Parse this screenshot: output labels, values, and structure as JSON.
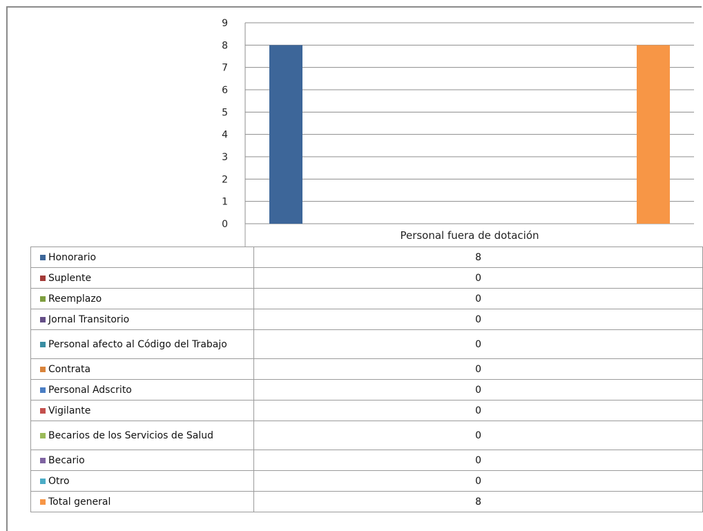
{
  "chart_data": {
    "type": "bar",
    "categories": [
      "Personal fuera de dotación"
    ],
    "series": [
      {
        "name": "Honorario",
        "values": [
          8
        ],
        "color": "#3d6699"
      },
      {
        "name": "Suplente",
        "values": [
          0
        ],
        "color": "#a33b38"
      },
      {
        "name": "Reemplazo",
        "values": [
          0
        ],
        "color": "#7e9e3f"
      },
      {
        "name": "Jornal Transitorio",
        "values": [
          0
        ],
        "color": "#654f87"
      },
      {
        "name": "Personal afecto al Código del Trabajo",
        "values": [
          0
        ],
        "color": "#3a8ea3"
      },
      {
        "name": "Contrata",
        "values": [
          0
        ],
        "color": "#d9843b"
      },
      {
        "name": "Personal Adscrito",
        "values": [
          0
        ],
        "color": "#4a7ec4"
      },
      {
        "name": "Vigilante",
        "values": [
          0
        ],
        "color": "#c4504d"
      },
      {
        "name": "Becarios de los Servicios de Salud",
        "values": [
          0
        ],
        "color": "#9bbb59"
      },
      {
        "name": "Becario",
        "values": [
          0
        ],
        "color": "#8064a2"
      },
      {
        "name": "Otro",
        "values": [
          0
        ],
        "color": "#4bacc6"
      },
      {
        "name": "Total general",
        "values": [
          8
        ],
        "color": "#f79646"
      }
    ],
    "yticks": [
      "0",
      "1",
      "2",
      "3",
      "4",
      "5",
      "6",
      "7",
      "8",
      "9"
    ],
    "ylim": [
      0,
      9
    ],
    "grid": true,
    "legend": "data table below chart",
    "table_values": [
      "8",
      "0",
      "0",
      "0",
      "0",
      "0",
      "0",
      "0",
      "0",
      "0",
      "0",
      "8"
    ]
  }
}
